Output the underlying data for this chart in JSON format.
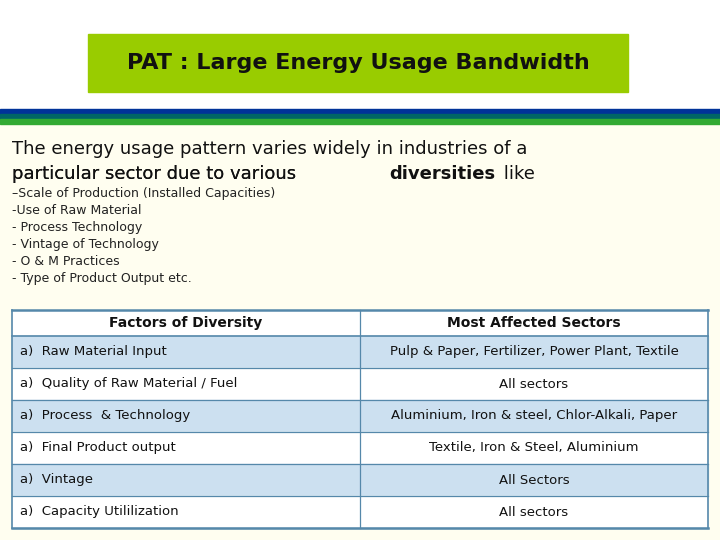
{
  "title": "PAT : Large Energy Usage Bandwidth",
  "title_bg": "#99cc00",
  "bg_color": "#fffef0",
  "white_bg": "#ffffff",
  "header_line1": "The energy usage pattern varies widely in industries of a",
  "header_line2_normal": "particular sector due to various ",
  "header_line2_bold": "diversities",
  "header_line2_end": " like",
  "bullet_points": [
    "–Scale of Production (Installed Capacities)",
    "-Use of Raw Material",
    "- Process Technology",
    "- Vintage of Technology",
    "- O & M Practices",
    "- Type of Product Output etc."
  ],
  "table_header": [
    "Factors of Diversity",
    "Most Affected Sectors"
  ],
  "table_rows": [
    [
      "a)  Raw Material Input",
      "Pulp & Paper, Fertilizer, Power Plant, Textile"
    ],
    [
      "a)  Quality of Raw Material / Fuel",
      "All sectors"
    ],
    [
      "a)  Process  & Technology",
      "Aluminium, Iron & steel, Chlor-Alkali, Paper"
    ],
    [
      "a)  Final Product output",
      "Textile, Iron & Steel, Aluminium"
    ],
    [
      "a)  Vintage",
      "All Sectors"
    ],
    [
      "a)  Capacity Utililization",
      "All sectors"
    ]
  ],
  "row_colors": [
    "#cce0f0",
    "#ffffff",
    "#cce0f0",
    "#ffffff",
    "#cce0f0",
    "#ffffff"
  ],
  "table_line_color": "#5588aa",
  "dark_blue": "#003399",
  "green": "#33aa33",
  "teal": "#006666"
}
